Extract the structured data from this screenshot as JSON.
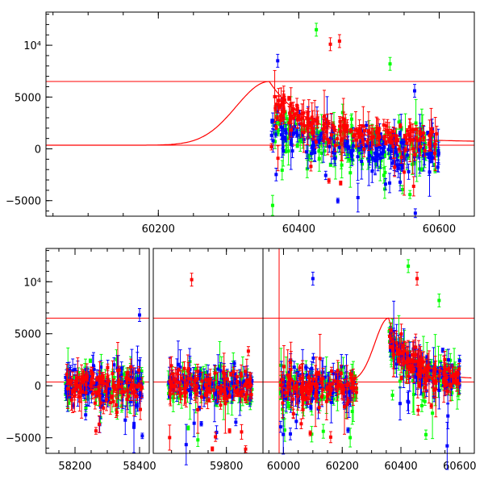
{
  "chart_data": [
    {
      "type": "scatter",
      "title": "",
      "xlabel": "",
      "ylabel": "",
      "xlim": [
        60040,
        60650
      ],
      "ylim": [
        -6500,
        13200
      ],
      "x_ticks": [
        60200,
        60400,
        60600
      ],
      "x_tick_labels": [
        "60200",
        "60400",
        "60600"
      ],
      "y_ticks": [
        -5000,
        0,
        5000,
        10000
      ],
      "y_tick_labels": [
        "−5000",
        "0",
        "5000",
        "10⁴"
      ],
      "grid": false,
      "legend": "none",
      "reference_lines": [
        {
          "orientation": "horizontal",
          "y": 6500,
          "color": "#ff0000"
        },
        {
          "orientation": "horizontal",
          "y": 350,
          "color": "#ff0000"
        }
      ],
      "model_curve": {
        "color": "#ff0000",
        "baseline": 350,
        "peak": 6500,
        "peak_x": 60358,
        "rise_width": 45,
        "decay": 55,
        "tail": 650,
        "tail_decay": 500
      },
      "series": [
        {
          "color": "#ff0000",
          "x_range": [
            60360,
            60600
          ],
          "level_start": 4600,
          "level_end": 700,
          "scatter": 900
        },
        {
          "color": "#00ff00",
          "x_range": [
            60360,
            60600
          ],
          "level_start": 2400,
          "level_end": 0,
          "scatter": 1400
        },
        {
          "color": "#0000ff",
          "x_range": [
            60360,
            60600
          ],
          "level_start": 2400,
          "level_end": -300,
          "scatter": 1200
        }
      ],
      "outliers": [
        {
          "color": "#00ff00",
          "x": 60425,
          "y": 11500
        },
        {
          "color": "#ff0000",
          "x": 60445,
          "y": 10100
        },
        {
          "color": "#ff0000",
          "x": 60458,
          "y": 10400
        },
        {
          "color": "#00ff00",
          "x": 60530,
          "y": 8200
        },
        {
          "color": "#0000ff",
          "x": 60370,
          "y": 8500
        },
        {
          "color": "#0000ff",
          "x": 60565,
          "y": 5600
        }
      ]
    },
    {
      "type": "scatter",
      "title": "",
      "xlabel": "",
      "ylabel": "",
      "ylim": [
        -6500,
        13200
      ],
      "broken_x_axis": true,
      "panels": [
        {
          "xlim": [
            58110,
            58430
          ],
          "x_ticks": [
            58200,
            58400
          ],
          "x_tick_labels": [
            "58200",
            "58400"
          ]
        },
        {
          "xlim": [
            59600,
            59900
          ],
          "x_ticks": [
            59800
          ],
          "x_tick_labels": [
            "59800"
          ]
        },
        {
          "xlim": [
            59930,
            60650
          ],
          "x_ticks": [
            60000,
            60200,
            60400,
            60600
          ],
          "x_tick_labels": [
            "60000",
            "60200",
            "60400",
            "60600"
          ]
        }
      ],
      "y_ticks": [
        -5000,
        0,
        5000,
        10000
      ],
      "y_tick_labels": [
        "−5000",
        "0",
        "5000",
        "10⁴"
      ],
      "grid": false,
      "legend": "none",
      "reference_lines": [
        {
          "orientation": "horizontal",
          "y": 6500,
          "color": "#ff0000"
        },
        {
          "orientation": "horizontal",
          "y": 350,
          "color": "#ff0000"
        },
        {
          "orientation": "vertical",
          "x": 59985,
          "color": "#ff0000"
        }
      ],
      "segments": [
        {
          "x_range": [
            58170,
            58410
          ],
          "level": 0,
          "scatter": 1100
        },
        {
          "x_range": [
            59640,
            59870
          ],
          "level": 0,
          "scatter": 1100
        },
        {
          "x_range": [
            59990,
            60250
          ],
          "level": 0,
          "scatter": 1100
        },
        {
          "x_range": [
            60360,
            60600
          ],
          "level_start": 4600,
          "level_end": 500,
          "scatter": 1000
        }
      ],
      "series_colors": [
        "#ff0000",
        "#00ff00",
        "#0000ff"
      ],
      "outliers": [
        {
          "color": "#ff0000",
          "x": 59705,
          "y": 10200
        },
        {
          "color": "#0000ff",
          "x": 60100,
          "y": 10300
        },
        {
          "color": "#00ff00",
          "x": 60425,
          "y": 11500
        },
        {
          "color": "#ff0000",
          "x": 60455,
          "y": 10300
        },
        {
          "color": "#0000ff",
          "x": 58400,
          "y": 6800
        },
        {
          "color": "#00ff00",
          "x": 60530,
          "y": 8200
        }
      ]
    }
  ]
}
